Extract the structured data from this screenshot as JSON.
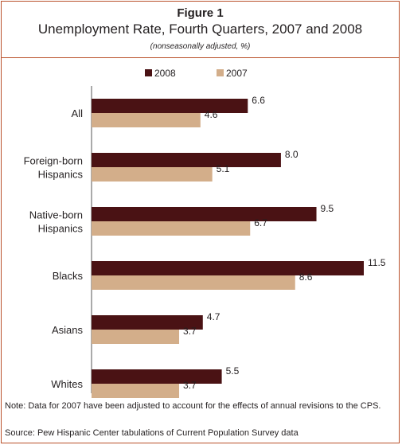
{
  "header": {
    "figure": "Figure 1",
    "title": "Unemployment Rate, Fourth Quarters, 2007 and 2008",
    "subtitle": "(nonseasonally adjusted, %)"
  },
  "footer": {
    "note": "Note: Data for 2007 have been adjusted to account for the effects of annual revisions to the CPS.",
    "source": "Source: Pew Hispanic Center tabulations of Current Population Survey data"
  },
  "chart_data": {
    "type": "bar",
    "orientation": "horizontal",
    "title": "Unemployment Rate, Fourth Quarters, 2007 and 2008",
    "subtitle": "(nonseasonally adjusted, %)",
    "categories": [
      [
        "All"
      ],
      [
        "Foreign-born",
        "Hispanics"
      ],
      [
        "Native-born",
        "Hispanics"
      ],
      [
        "Blacks"
      ],
      [
        "Asians"
      ],
      [
        "Whites"
      ]
    ],
    "series": [
      {
        "name": "2008",
        "color": "#4a1214",
        "values": [
          6.6,
          8.0,
          9.5,
          11.5,
          4.7,
          5.5
        ]
      },
      {
        "name": "2007",
        "color": "#d3ae8a",
        "values": [
          4.6,
          5.1,
          6.7,
          8.6,
          3.7,
          3.7
        ]
      }
    ],
    "value_labels": [
      [
        "6.6",
        "8.0",
        "9.5",
        "11.5",
        "4.7",
        "5.5"
      ],
      [
        "4.6",
        "5.1",
        "6.7",
        "8.6",
        "3.7",
        "3.7"
      ]
    ],
    "xlim": [
      0,
      11.5
    ],
    "legend": "top-center",
    "grid": false
  }
}
